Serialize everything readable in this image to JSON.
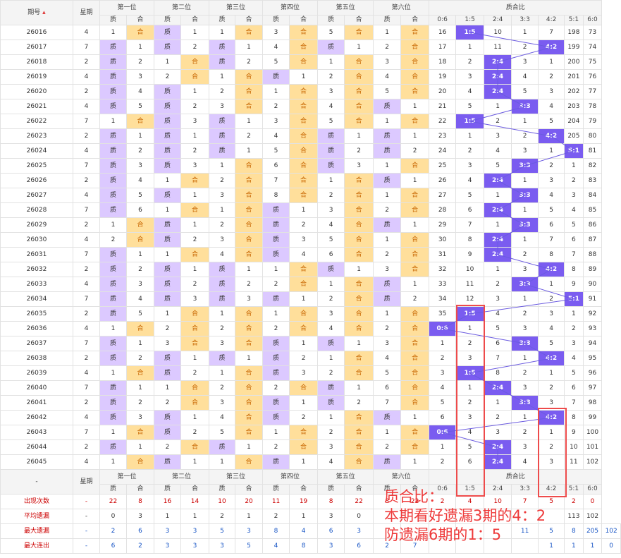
{
  "header": {
    "period": "期号",
    "weekday": "星期",
    "positions": [
      "第一位",
      "第二位",
      "第三位",
      "第四位",
      "第五位",
      "第六位"
    ],
    "ratio": "质合比",
    "zhi": "质",
    "he": "合",
    "ratios": [
      "0:6",
      "1:5",
      "2:4",
      "3:3",
      "4:2",
      "5:1",
      "6:0"
    ]
  },
  "chart_data": {
    "type": "table",
    "rows": [
      {
        "id": "26016",
        "w": "4",
        "pos": [
          [
            "1",
            "H"
          ],
          [
            "M",
            "1"
          ],
          [
            "1",
            "H"
          ],
          [
            "3",
            "H"
          ],
          [
            "5",
            "H"
          ],
          [
            "1",
            "H"
          ]
        ],
        "r": [
          "16",
          "1:5",
          "10",
          "1",
          "7",
          "198",
          "73"
        ],
        "sel": 1
      },
      {
        "id": "26017",
        "w": "7",
        "pos": [
          [
            "M",
            "1"
          ],
          [
            "M",
            "2"
          ],
          [
            "M",
            "1"
          ],
          [
            "4",
            "H"
          ],
          [
            "M",
            "1"
          ],
          [
            "2",
            "H"
          ]
        ],
        "r": [
          "17",
          "1",
          "11",
          "2",
          "4:2",
          "199",
          "74"
        ],
        "sel": 4
      },
      {
        "id": "26018",
        "w": "2",
        "pos": [
          [
            "M",
            "2"
          ],
          [
            "1",
            "H"
          ],
          [
            "M",
            "2"
          ],
          [
            "5",
            "H"
          ],
          [
            "1",
            "H"
          ],
          [
            "3",
            "H"
          ]
        ],
        "r": [
          "18",
          "2",
          "2:4",
          "3",
          "1",
          "200",
          "75"
        ],
        "sel": 2
      },
      {
        "id": "26019",
        "w": "4",
        "pos": [
          [
            "M",
            "3"
          ],
          [
            "2",
            "H"
          ],
          [
            "1",
            "H"
          ],
          [
            "M",
            "1"
          ],
          [
            "2",
            "H"
          ],
          [
            "4",
            "H"
          ]
        ],
        "r": [
          "19",
          "3",
          "2:4",
          "4",
          "2",
          "201",
          "76"
        ],
        "sel": 2
      },
      {
        "id": "26020",
        "w": "2",
        "pos": [
          [
            "M",
            "4"
          ],
          [
            "M",
            "1"
          ],
          [
            "2",
            "H"
          ],
          [
            "1",
            "H"
          ],
          [
            "3",
            "H"
          ],
          [
            "5",
            "H"
          ]
        ],
        "r": [
          "20",
          "4",
          "2:4",
          "5",
          "3",
          "202",
          "77"
        ],
        "sel": 2
      },
      {
        "id": "26021",
        "w": "4",
        "pos": [
          [
            "M",
            "5"
          ],
          [
            "M",
            "2"
          ],
          [
            "3",
            "H"
          ],
          [
            "2",
            "H"
          ],
          [
            "4",
            "H"
          ],
          [
            "M",
            "1"
          ]
        ],
        "r": [
          "21",
          "5",
          "1",
          "3:3",
          "4",
          "203",
          "78"
        ],
        "sel": 3
      },
      {
        "id": "26022",
        "w": "7",
        "pos": [
          [
            "1",
            "H"
          ],
          [
            "M",
            "3"
          ],
          [
            "M",
            "1"
          ],
          [
            "3",
            "H"
          ],
          [
            "5",
            "H"
          ],
          [
            "1",
            "H"
          ]
        ],
        "r": [
          "22",
          "1:5",
          "2",
          "1",
          "5",
          "204",
          "79"
        ],
        "sel": 1
      },
      {
        "id": "26023",
        "w": "2",
        "pos": [
          [
            "M",
            "1"
          ],
          [
            "M",
            "1"
          ],
          [
            "M",
            "2"
          ],
          [
            "4",
            "H"
          ],
          [
            "M",
            "1"
          ],
          [
            "M",
            "1"
          ]
        ],
        "r": [
          "23",
          "1",
          "3",
          "2",
          "4:2",
          "205",
          "80"
        ],
        "sel": 4
      },
      {
        "id": "26024",
        "w": "4",
        "pos": [
          [
            "M",
            "2"
          ],
          [
            "M",
            "2"
          ],
          [
            "M",
            "1"
          ],
          [
            "5",
            "H"
          ],
          [
            "M",
            "2"
          ],
          [
            "M",
            "2"
          ]
        ],
        "r": [
          "24",
          "2",
          "4",
          "3",
          "1",
          "5:1",
          "81"
        ],
        "sel": 5
      },
      {
        "id": "26025",
        "w": "7",
        "pos": [
          [
            "M",
            "3"
          ],
          [
            "M",
            "3"
          ],
          [
            "1",
            "H"
          ],
          [
            "6",
            "H"
          ],
          [
            "M",
            "3"
          ],
          [
            "1",
            "H"
          ]
        ],
        "r": [
          "25",
          "3",
          "5",
          "3:3",
          "2",
          "1",
          "82"
        ],
        "sel": 3
      },
      {
        "id": "26026",
        "w": "2",
        "pos": [
          [
            "M",
            "4"
          ],
          [
            "1",
            "H"
          ],
          [
            "2",
            "H"
          ],
          [
            "7",
            "H"
          ],
          [
            "1",
            "H"
          ],
          [
            "M",
            "1"
          ]
        ],
        "r": [
          "26",
          "4",
          "2:4",
          "1",
          "3",
          "2",
          "83"
        ],
        "sel": 2
      },
      {
        "id": "26027",
        "w": "4",
        "pos": [
          [
            "M",
            "5"
          ],
          [
            "M",
            "1"
          ],
          [
            "3",
            "H"
          ],
          [
            "8",
            "H"
          ],
          [
            "2",
            "H"
          ],
          [
            "1",
            "H"
          ]
        ],
        "r": [
          "27",
          "5",
          "1",
          "3:3",
          "4",
          "3",
          "84"
        ],
        "sel": 3
      },
      {
        "id": "26028",
        "w": "7",
        "pos": [
          [
            "M",
            "6"
          ],
          [
            "1",
            "H"
          ],
          [
            "1",
            "H"
          ],
          [
            "M",
            "1"
          ],
          [
            "3",
            "H"
          ],
          [
            "2",
            "H"
          ]
        ],
        "r": [
          "28",
          "6",
          "2:4",
          "1",
          "5",
          "4",
          "85"
        ],
        "sel": 2
      },
      {
        "id": "26029",
        "w": "2",
        "pos": [
          [
            "1",
            "H"
          ],
          [
            "M",
            "1"
          ],
          [
            "2",
            "H"
          ],
          [
            "M",
            "2"
          ],
          [
            "4",
            "H"
          ],
          [
            "M",
            "1"
          ]
        ],
        "r": [
          "29",
          "7",
          "1",
          "3:3",
          "6",
          "5",
          "86"
        ],
        "sel": 3
      },
      {
        "id": "26030",
        "w": "4",
        "pos": [
          [
            "2",
            "H"
          ],
          [
            "M",
            "2"
          ],
          [
            "3",
            "H"
          ],
          [
            "M",
            "3"
          ],
          [
            "5",
            "H"
          ],
          [
            "1",
            "H"
          ]
        ],
        "r": [
          "30",
          "8",
          "2:4",
          "1",
          "7",
          "6",
          "87"
        ],
        "sel": 2
      },
      {
        "id": "26031",
        "w": "7",
        "pos": [
          [
            "M",
            "1"
          ],
          [
            "1",
            "H"
          ],
          [
            "4",
            "H"
          ],
          [
            "M",
            "4"
          ],
          [
            "6",
            "H"
          ],
          [
            "2",
            "H"
          ]
        ],
        "r": [
          "31",
          "9",
          "2:4",
          "2",
          "8",
          "7",
          "88"
        ],
        "sel": 2
      },
      {
        "id": "26032",
        "w": "2",
        "pos": [
          [
            "M",
            "2"
          ],
          [
            "M",
            "1"
          ],
          [
            "M",
            "1"
          ],
          [
            "1",
            "H"
          ],
          [
            "M",
            "1"
          ],
          [
            "3",
            "H"
          ]
        ],
        "r": [
          "32",
          "10",
          "1",
          "3",
          "4:2",
          "8",
          "89"
        ],
        "sel": 4
      },
      {
        "id": "26033",
        "w": "4",
        "pos": [
          [
            "M",
            "3"
          ],
          [
            "M",
            "2"
          ],
          [
            "M",
            "2"
          ],
          [
            "2",
            "H"
          ],
          [
            "1",
            "H"
          ],
          [
            "M",
            "1"
          ]
        ],
        "r": [
          "33",
          "11",
          "2",
          "3:3",
          "1",
          "9",
          "90"
        ],
        "sel": 3
      },
      {
        "id": "26034",
        "w": "7",
        "pos": [
          [
            "M",
            "4"
          ],
          [
            "M",
            "3"
          ],
          [
            "M",
            "3"
          ],
          [
            "M",
            "1"
          ],
          [
            "2",
            "H"
          ],
          [
            "M",
            "2"
          ]
        ],
        "r": [
          "34",
          "12",
          "3",
          "1",
          "2",
          "5:1",
          "91"
        ],
        "sel": 5
      },
      {
        "id": "26035",
        "w": "2",
        "pos": [
          [
            "M",
            "5"
          ],
          [
            "1",
            "H"
          ],
          [
            "1",
            "H"
          ],
          [
            "1",
            "H"
          ],
          [
            "3",
            "H"
          ],
          [
            "1",
            "H"
          ]
        ],
        "r": [
          "35",
          "1:5",
          "4",
          "2",
          "3",
          "1",
          "92"
        ],
        "sel": 1
      },
      {
        "id": "26036",
        "w": "4",
        "pos": [
          [
            "1",
            "H"
          ],
          [
            "2",
            "H"
          ],
          [
            "2",
            "H"
          ],
          [
            "2",
            "H"
          ],
          [
            "4",
            "H"
          ],
          [
            "2",
            "H"
          ]
        ],
        "r": [
          "0:6",
          "1",
          "5",
          "3",
          "4",
          "2",
          "93"
        ],
        "sel": 0
      },
      {
        "id": "26037",
        "w": "7",
        "pos": [
          [
            "M",
            "1"
          ],
          [
            "3",
            "H"
          ],
          [
            "3",
            "H"
          ],
          [
            "M",
            "1"
          ],
          [
            "M",
            "1"
          ],
          [
            "3",
            "H"
          ]
        ],
        "r": [
          "1",
          "2",
          "6",
          "3:3",
          "5",
          "3",
          "94"
        ],
        "sel": 3
      },
      {
        "id": "26038",
        "w": "2",
        "pos": [
          [
            "M",
            "2"
          ],
          [
            "M",
            "1"
          ],
          [
            "M",
            "1"
          ],
          [
            "M",
            "2"
          ],
          [
            "1",
            "H"
          ],
          [
            "4",
            "H"
          ]
        ],
        "r": [
          "2",
          "3",
          "7",
          "1",
          "4:2",
          "4",
          "95"
        ],
        "sel": 4
      },
      {
        "id": "26039",
        "w": "4",
        "pos": [
          [
            "1",
            "H"
          ],
          [
            "M",
            "2"
          ],
          [
            "1",
            "H"
          ],
          [
            "M",
            "3"
          ],
          [
            "2",
            "H"
          ],
          [
            "5",
            "H"
          ]
        ],
        "r": [
          "3",
          "1:5",
          "8",
          "2",
          "1",
          "5",
          "96"
        ],
        "sel": 1
      },
      {
        "id": "26040",
        "w": "7",
        "pos": [
          [
            "M",
            "1"
          ],
          [
            "1",
            "H"
          ],
          [
            "2",
            "H"
          ],
          [
            "2",
            "H"
          ],
          [
            "M",
            "1"
          ],
          [
            "6",
            "H"
          ]
        ],
        "r": [
          "4",
          "1",
          "2:4",
          "3",
          "2",
          "6",
          "97"
        ],
        "sel": 2
      },
      {
        "id": "26041",
        "w": "2",
        "pos": [
          [
            "M",
            "2"
          ],
          [
            "2",
            "H"
          ],
          [
            "3",
            "H"
          ],
          [
            "M",
            "1"
          ],
          [
            "M",
            "2"
          ],
          [
            "7",
            "H"
          ]
        ],
        "r": [
          "5",
          "2",
          "1",
          "3:3",
          "3",
          "7",
          "98"
        ],
        "sel": 3
      },
      {
        "id": "26042",
        "w": "4",
        "pos": [
          [
            "M",
            "3"
          ],
          [
            "M",
            "1"
          ],
          [
            "4",
            "H"
          ],
          [
            "M",
            "2"
          ],
          [
            "1",
            "H"
          ],
          [
            "M",
            "1"
          ]
        ],
        "r": [
          "6",
          "3",
          "2",
          "1",
          "4:2",
          "8",
          "99"
        ],
        "sel": 4
      },
      {
        "id": "26043",
        "w": "7",
        "pos": [
          [
            "1",
            "H"
          ],
          [
            "M",
            "2"
          ],
          [
            "5",
            "H"
          ],
          [
            "1",
            "H"
          ],
          [
            "2",
            "H"
          ],
          [
            "1",
            "H"
          ]
        ],
        "r": [
          "0:6",
          "4",
          "3",
          "2",
          "1",
          "9",
          "100"
        ],
        "sel": 0
      },
      {
        "id": "26044",
        "w": "2",
        "pos": [
          [
            "M",
            "1"
          ],
          [
            "2",
            "H"
          ],
          [
            "M",
            "1"
          ],
          [
            "2",
            "H"
          ],
          [
            "3",
            "H"
          ],
          [
            "2",
            "H"
          ]
        ],
        "r": [
          "1",
          "5",
          "2:4",
          "3",
          "2",
          "10",
          "101"
        ],
        "sel": 2
      },
      {
        "id": "26045",
        "w": "4",
        "pos": [
          [
            "1",
            "H"
          ],
          [
            "M",
            "1"
          ],
          [
            "1",
            "H"
          ],
          [
            "M",
            "1"
          ],
          [
            "4",
            "H"
          ],
          [
            "M",
            "1"
          ]
        ],
        "r": [
          "2",
          "6",
          "2:4",
          "4",
          "3",
          "11",
          "102"
        ],
        "sel": 2
      }
    ]
  },
  "footer": {
    "dash": "-",
    "stats": [
      {
        "label": "出现次数",
        "vals": [
          "-",
          "22",
          "8",
          "16",
          "14",
          "10",
          "20",
          "11",
          "19",
          "8",
          "22",
          "8",
          "22",
          "2",
          "4",
          "10",
          "7",
          "5",
          "2",
          "0"
        ],
        "cls": "r"
      },
      {
        "label": "平均遗漏",
        "vals": [
          "-",
          "0",
          "3",
          "1",
          "1",
          "2",
          "1",
          "2",
          "1",
          "3",
          "0",
          "",
          "",
          "",
          "",
          "",
          "",
          "",
          "113",
          "102"
        ],
        "cls": ""
      },
      {
        "label": "最大遗漏",
        "vals": [
          "-",
          "2",
          "6",
          "3",
          "3",
          "5",
          "3",
          "8",
          "4",
          "6",
          "3",
          "",
          "",
          "",
          "",
          "",
          "11",
          "5",
          "8",
          "205",
          "102"
        ],
        "cls": "b"
      },
      {
        "label": "最大连出",
        "vals": [
          "-",
          "6",
          "2",
          "3",
          "3",
          "3",
          "5",
          "4",
          "8",
          "3",
          "6",
          "2",
          "7",
          "",
          "",
          "",
          "",
          "1",
          "1",
          "1",
          "0"
        ],
        "cls": "b"
      }
    ]
  },
  "annotation": {
    "line1": "质合比：",
    "line2": "本期看好遗漏3期的4：2",
    "line3": "防遗漏6期的1：5"
  },
  "colors": {
    "zhi_bg": "#dcc9ff",
    "he_bg": "#ffdf9b",
    "selected": "#7a5cf0",
    "line": "#6b5be0",
    "annotation": "#ee3a3a"
  }
}
